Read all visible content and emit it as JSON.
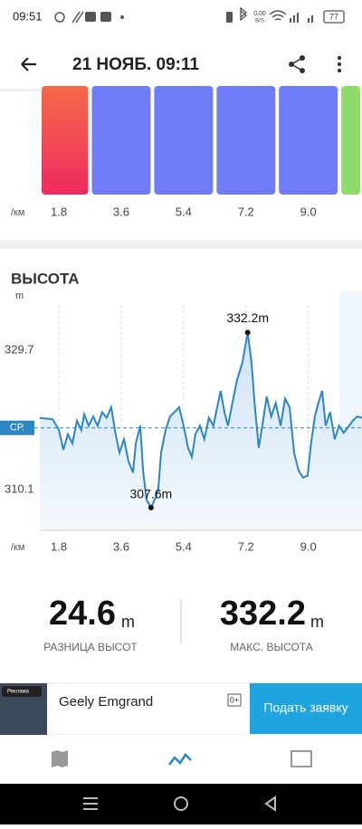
{
  "status_bar": {
    "time": "09:51",
    "net_speed": "0,00",
    "net_unit": "B/S",
    "battery": "77"
  },
  "header": {
    "title": "21 НОЯБ. 09:11"
  },
  "chart_data": [
    {
      "type": "bar",
      "x_unit": "/км",
      "bins": [
        1.25,
        2.7,
        4.5,
        6.3,
        8.1,
        9.9,
        10.55
      ],
      "colors": [
        "#f2465a",
        "#6f7cf5",
        "#6f7cf5",
        "#6f7cf5",
        "#6f7cf5",
        "#8ddc6a"
      ],
      "xlim": [
        1.25,
        10.55
      ],
      "xticks": [
        1.8,
        3.6,
        5.4,
        7.2,
        {
          "value": 9,
          "label": "9.0"
        }
      ]
    },
    {
      "type": "line",
      "title": "ВЫСОТА",
      "y_unit": "m",
      "x_unit": "/км",
      "color": "#2a86c4",
      "x": [
        1.25,
        1.62,
        1.8,
        1.93,
        2.06,
        2.19,
        2.32,
        2.45,
        2.53,
        2.66,
        2.79,
        2.92,
        3.05,
        3.18,
        3.31,
        3.44,
        3.55,
        3.68,
        3.81,
        3.94,
        4.02,
        4.15,
        4.23,
        4.33,
        4.46,
        4.59,
        4.67,
        4.75,
        4.88,
        5.01,
        5.14,
        5.27,
        5.4,
        5.53,
        5.64,
        5.74,
        5.87,
        6.0,
        6.13,
        6.26,
        6.37,
        6.47,
        6.58,
        6.68,
        6.81,
        6.94,
        7.1,
        7.25,
        7.36,
        7.46,
        7.57,
        7.67,
        7.8,
        7.93,
        8.06,
        8.2,
        8.33,
        8.46,
        8.59,
        8.72,
        8.85,
        8.98,
        9.08,
        9.19,
        9.29,
        9.4,
        9.5,
        9.63,
        9.76,
        9.89,
        10.02,
        10.15,
        10.28,
        10.41,
        10.55
      ],
      "values": [
        320.2,
        320.0,
        318.5,
        315.7,
        317.9,
        316.6,
        319.8,
        318.5,
        320.7,
        319.1,
        320.4,
        319.1,
        321.0,
        320.2,
        321.7,
        317.9,
        315.3,
        317.2,
        314.1,
        312.5,
        316.6,
        319.1,
        312.8,
        308.7,
        307.6,
        309.0,
        310.2,
        315.3,
        318.5,
        320.4,
        321.0,
        321.7,
        319.1,
        316.0,
        314.7,
        317.9,
        319.1,
        317.2,
        320.2,
        319.1,
        321.7,
        324.0,
        321.0,
        319.1,
        322.3,
        325.5,
        328.0,
        332.2,
        328.0,
        321.7,
        316.0,
        319.1,
        323.2,
        320.4,
        322.3,
        319.1,
        322.9,
        321.7,
        315.3,
        312.8,
        311.8,
        312.1,
        316.6,
        320.4,
        322.3,
        324.0,
        319.1,
        321.0,
        317.2,
        319.1,
        318.1,
        318.9,
        319.8,
        320.4,
        320.2
      ],
      "xlim": [
        1.25,
        10.55
      ],
      "ylim": [
        304.4,
        336.06
      ],
      "xticks": [
        1.8,
        3.6,
        5.4,
        7.2,
        {
          "value": 9,
          "label": "9.0"
        }
      ],
      "yticks": [
        329.7,
        310.1
      ],
      "average": {
        "value": 318.8,
        "label": "СР."
      },
      "annotations": [
        {
          "x": 7.25,
          "value": 332.2,
          "label": "332.2m"
        },
        {
          "x": 4.46,
          "value": 307.6,
          "label": "307.6m"
        }
      ]
    }
  ],
  "stats": [
    {
      "value": "24.6",
      "unit": "m",
      "label": "РАЗНИЦА ВЫСОТ"
    },
    {
      "value": "332.2",
      "unit": "m",
      "label": "МАКС. ВЫСОТА"
    }
  ],
  "ad": {
    "badge": "Реклама",
    "title": "Geely Emgrand",
    "age": "0+",
    "button": "Подать заявку"
  }
}
